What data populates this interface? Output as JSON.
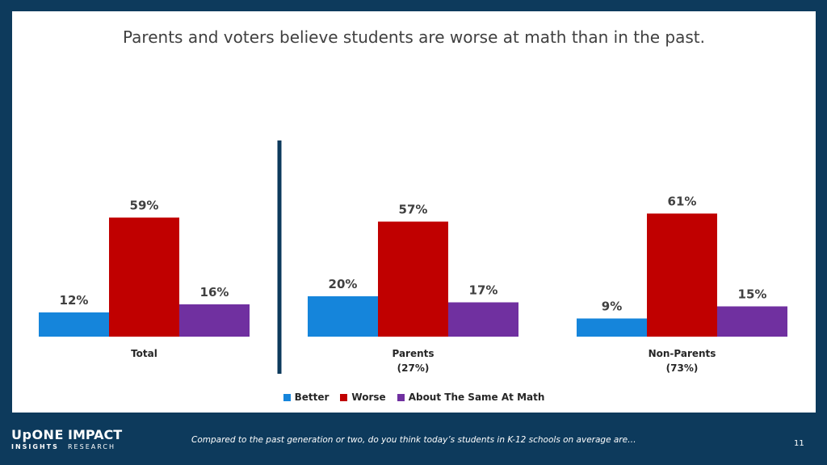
{
  "title": "Parents and voters believe students are worse at math than in the past.",
  "chart_data": {
    "type": "bar",
    "categories": [
      "Total",
      "Parents\n(27%)",
      "Non-Parents\n(73%)"
    ],
    "series": [
      {
        "name": "Better",
        "values": [
          12,
          20,
          9
        ],
        "color": "#1585db"
      },
      {
        "name": "Worse",
        "values": [
          59,
          57,
          61
        ],
        "color": "#c00000"
      },
      {
        "name": "About The Same At Math",
        "values": [
          16,
          17,
          15
        ],
        "color": "#7030a0"
      }
    ],
    "value_suffix": "%",
    "ylim": [
      0,
      100
    ],
    "grid": false,
    "legend_position": "bottom",
    "separator_after_category": "Total"
  },
  "footer": {
    "logo_top_left": "UpONE",
    "logo_top_right": "IMPACT",
    "logo_bottom_left": "INSIGHTS",
    "logo_bottom_right": "RESEARCH",
    "question": "Compared to the past generation or two, do you think today’s students in K-12 schools on average are…",
    "page_number": "11"
  },
  "colors": {
    "background": "#0d3a5c",
    "better": "#1585db",
    "worse": "#c00000",
    "same": "#7030a0"
  }
}
